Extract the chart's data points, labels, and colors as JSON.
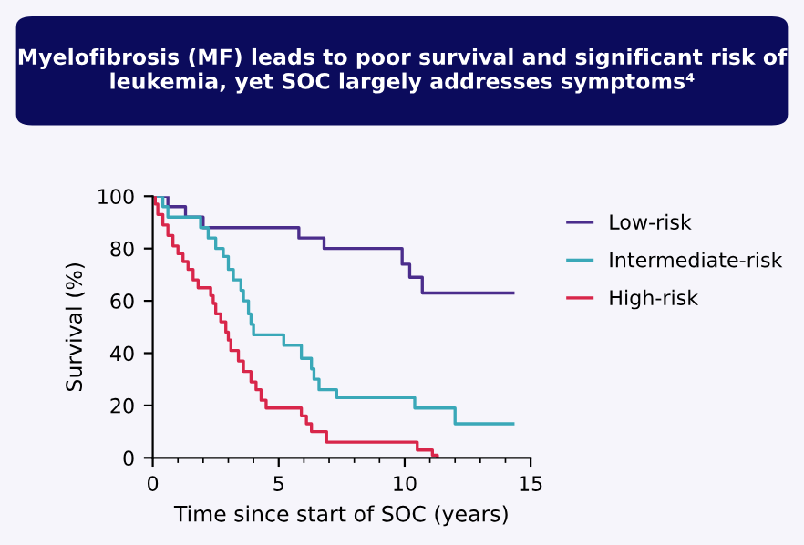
{
  "chart_data": {
    "type": "step",
    "title": "Myelofibrosis (MF) leads to poor survival and significant risk of leukemia, yet SOC largely addresses symptoms⁴",
    "xlabel": "Time since start of SOC (years)",
    "ylabel": "Survival (%)",
    "xlim": [
      0,
      15
    ],
    "xticks": [
      0,
      5,
      10,
      15
    ],
    "ylim": [
      0,
      100
    ],
    "yticks": [
      0,
      20,
      40,
      60,
      80,
      100
    ],
    "legend": "right",
    "grid": false,
    "series": [
      {
        "name": "Low-risk",
        "color": "#4b2d8c",
        "x": [
          0,
          0.6,
          1.3,
          2.0,
          5.8,
          6.8,
          9.9,
          10.2,
          10.7,
          14.3
        ],
        "values": [
          100,
          96,
          92,
          88,
          84,
          80,
          74,
          69,
          63,
          63
        ]
      },
      {
        "name": "Intermediate-risk",
        "color": "#3aa8b8",
        "x": [
          0,
          0.4,
          0.6,
          1.9,
          2.2,
          2.5,
          2.8,
          3.0,
          3.2,
          3.5,
          3.6,
          3.8,
          3.9,
          4.0,
          5.2,
          5.9,
          6.3,
          6.4,
          6.6,
          7.3,
          10.4,
          12.0,
          14.3
        ],
        "values": [
          100,
          96,
          92,
          88,
          84,
          80,
          77,
          72,
          68,
          64,
          60,
          55,
          51,
          47,
          43,
          38,
          34,
          30,
          26,
          23,
          19,
          13,
          13
        ]
      },
      {
        "name": "High-risk",
        "color": "#d8264a",
        "x": [
          0,
          0.1,
          0.2,
          0.4,
          0.6,
          0.8,
          1.0,
          1.2,
          1.4,
          1.6,
          1.8,
          2.3,
          2.4,
          2.5,
          2.7,
          2.9,
          3.0,
          3.1,
          3.4,
          3.6,
          3.9,
          4.1,
          4.3,
          4.5,
          5.9,
          6.1,
          6.3,
          6.9,
          10.5,
          11.1,
          11.3
        ],
        "values": [
          100,
          97,
          93,
          89,
          85,
          81,
          78,
          75,
          72,
          68,
          65,
          62,
          59,
          55,
          52,
          48,
          45,
          41,
          37,
          33,
          29,
          26,
          22,
          19,
          16,
          13,
          10,
          6,
          3,
          1,
          0
        ]
      }
    ]
  }
}
